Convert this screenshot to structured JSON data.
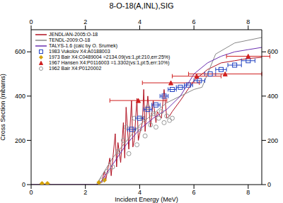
{
  "chart_data": {
    "type": "line",
    "title": "8-O-18(A,INL),SIG",
    "x_label": "Incident Energy (MeV)",
    "y_label": "Cross Section (mbarns)",
    "xlim": [
      0,
      8.5
    ],
    "xticks": [
      0,
      2,
      4,
      6,
      8
    ],
    "ylim": [
      0,
      700
    ],
    "yticks": [
      0,
      200,
      400,
      600
    ],
    "legend": "upper left",
    "grid": false,
    "series": [
      {
        "name": "JENDL/AN-2005:O-18",
        "type": "line",
        "color": "#b01020",
        "x": [
          0,
          2.4,
          2.6,
          2.7,
          2.75,
          2.9,
          2.95,
          3.1,
          3.15,
          3.2,
          3.3,
          3.4,
          3.45,
          3.5,
          3.6,
          3.7,
          3.75,
          3.8,
          3.9,
          3.95,
          4.0,
          4.1,
          4.15,
          4.2,
          4.3,
          4.4,
          4.5,
          4.6,
          4.65,
          4.8,
          4.9,
          5.0,
          5.1,
          5.2,
          5.5,
          6.0,
          6.5,
          7.0,
          7.5,
          8.0,
          8.5
        ],
        "values": [
          0,
          0,
          10,
          60,
          20,
          120,
          40,
          230,
          80,
          190,
          100,
          280,
          120,
          350,
          160,
          380,
          170,
          200,
          390,
          200,
          230,
          280,
          430,
          240,
          400,
          260,
          380,
          280,
          330,
          300,
          430,
          300,
          310,
          330,
          380,
          470,
          520,
          550,
          560,
          570,
          575
        ]
      },
      {
        "name": "TENDL-2009:O-18",
        "type": "line",
        "color": "#888888",
        "x": [
          0,
          2.4,
          3.0,
          4.0,
          5.0,
          6.0,
          6.3,
          6.8,
          7.5,
          8.5
        ],
        "values": [
          0,
          0,
          120,
          270,
          370,
          430,
          440,
          590,
          640,
          665
        ]
      },
      {
        "name": "TALYS-1.6 (calc by O. Srumek)",
        "type": "line",
        "color": "#6a2fb0",
        "x": [
          0,
          2.5,
          3.0,
          3.5,
          4.0,
          4.5,
          5.0,
          5.5,
          6.0,
          6.5,
          7.0,
          7.5,
          8.0,
          8.5
        ],
        "values": [
          0,
          0,
          90,
          180,
          250,
          300,
          340,
          400,
          500,
          550,
          580,
          600,
          610,
          620
        ]
      },
      {
        "name": "1983 Vukolov X4:A0188003",
        "type": "scatter",
        "marker": "square",
        "color": "#2040c0",
        "x": [
          3.7,
          4.0,
          4.3,
          4.6,
          4.9,
          5.2,
          5.5,
          5.8,
          6.2,
          6.6,
          7.0,
          7.5,
          8.0
        ],
        "values": [
          250,
          300,
          340,
          360,
          400,
          430,
          440,
          450,
          470,
          500,
          520,
          540,
          560
        ],
        "x_error": [
          0.15,
          0.15,
          0.15,
          0.15,
          0.15,
          0.15,
          0.15,
          0.15,
          0.2,
          0.2,
          0.2,
          0.25,
          0.25
        ]
      },
      {
        "name": "1973 Bair X4:C0489004 =2134.09(vs:1,pt:210,err:25%)",
        "type": "scatter",
        "marker": "diamond",
        "color": "#d4a000",
        "x": [
          0.4,
          0.6,
          2.5,
          2.7
        ],
        "values": [
          5,
          5,
          10,
          20
        ]
      },
      {
        "name": "1967 Hansen X4:P0116003 =1.3302(vs:1,pt:5,err:10%)",
        "type": "scatter",
        "marker": "triangle",
        "color": "#d02020",
        "x": [
          3.95,
          5.15,
          6.1,
          7.15,
          8.0
        ],
        "values": [
          380,
          460,
          490,
          500,
          580
        ],
        "x_error": [
          1.05,
          1.05,
          0.9,
          1.35,
          0.8
        ]
      },
      {
        "name": "1962 Bair X4:P0120002",
        "type": "scatter",
        "marker": "circle",
        "color": "#999999",
        "x": [
          2.6,
          2.8,
          3.0,
          3.2,
          3.4,
          3.5,
          3.6,
          3.8,
          3.9,
          4.0,
          4.1,
          4.2,
          4.3,
          4.4,
          4.5,
          4.6,
          4.7,
          4.8,
          4.9,
          5.0,
          5.1,
          5.2
        ],
        "values": [
          20,
          60,
          80,
          150,
          200,
          260,
          140,
          300,
          180,
          250,
          300,
          220,
          350,
          270,
          320,
          260,
          300,
          330,
          280,
          310,
          290,
          300
        ]
      }
    ]
  }
}
